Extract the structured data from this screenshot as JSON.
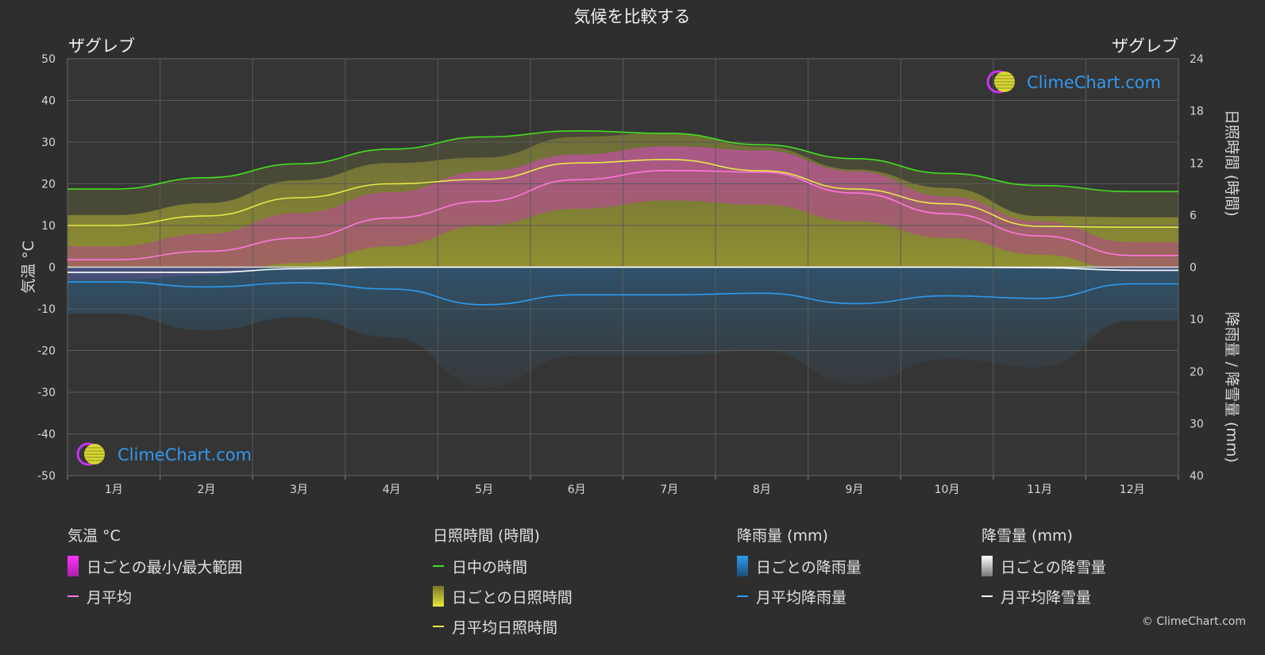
{
  "chart_data": {
    "type": "line",
    "title": "気候を比較する",
    "location_left": "ザグレブ",
    "location_right": "ザグレブ",
    "watermark": "ClimeChart.com",
    "categories": [
      "1月",
      "2月",
      "3月",
      "4月",
      "5月",
      "6月",
      "7月",
      "8月",
      "9月",
      "10月",
      "11月",
      "12月"
    ],
    "y_left": {
      "label": "気温 °C",
      "range": [
        -50,
        50
      ],
      "ticks": [
        50,
        40,
        30,
        20,
        10,
        0,
        -10,
        -20,
        -30,
        -40,
        -50
      ]
    },
    "y_right_top": {
      "label": "日照時間 (時間)",
      "range": [
        0,
        24
      ],
      "ticks": [
        24,
        18,
        12,
        6,
        0
      ]
    },
    "y_right_bottom": {
      "label": "降雨量 / 降雪量 (mm)",
      "range": [
        0,
        40
      ],
      "ticks": [
        0,
        10,
        20,
        30,
        40
      ]
    },
    "series": [
      {
        "name": "日中の時間",
        "axis": "sunshine_hours",
        "color": "#44dd22",
        "values": [
          9.0,
          10.3,
          11.9,
          13.6,
          15.0,
          15.7,
          15.4,
          14.1,
          12.5,
          10.8,
          9.4,
          8.7
        ]
      },
      {
        "name": "月平均日照時間",
        "axis": "sunshine_hours",
        "color": "#e8e84a",
        "values": [
          4.8,
          5.9,
          8.0,
          9.6,
          10.1,
          12.0,
          12.4,
          11.1,
          9.0,
          7.3,
          4.7,
          4.6
        ]
      },
      {
        "name": "月平均",
        "axis": "temperature_c",
        "color": "#ff77dd",
        "values": [
          1.8,
          3.8,
          7.0,
          11.8,
          15.8,
          21.0,
          23.2,
          22.8,
          17.8,
          12.8,
          7.5,
          2.8
        ]
      },
      {
        "name": "月平均降雨量",
        "axis": "precipitation_mm",
        "color": "#2e9bf0",
        "values": [
          2.8,
          3.8,
          3.0,
          4.2,
          7.2,
          5.3,
          5.3,
          5.0,
          7.0,
          5.5,
          6.0,
          3.2
        ]
      },
      {
        "name": "月平均降雪量",
        "axis": "precipitation_mm",
        "color": "#ffffff",
        "values": [
          1.0,
          1.0,
          0.3,
          0.0,
          0.0,
          0.0,
          0.0,
          0.0,
          0.0,
          0.0,
          0.1,
          0.6
        ]
      }
    ],
    "daily_temperature_range_c": {
      "min": [
        -3,
        -2,
        1,
        5,
        10,
        14,
        16,
        15,
        11,
        7,
        3,
        -1
      ],
      "max": [
        5,
        8,
        13,
        18,
        23,
        27,
        29,
        28,
        23,
        17,
        11,
        6
      ]
    },
    "grid": true,
    "legend": {
      "groups": [
        {
          "title": "気温 °C",
          "items": [
            "日ごとの最小/最大範囲",
            "月平均"
          ]
        },
        {
          "title": "日照時間 (時間)",
          "items": [
            "日中の時間",
            "日ごとの日照時間",
            "月平均日照時間"
          ]
        },
        {
          "title": "降雨量 (mm)",
          "items": [
            "日ごとの降雨量",
            "月平均降雨量"
          ]
        },
        {
          "title": "降雪量 (mm)",
          "items": [
            "日ごとの降雪量",
            "月平均降雪量"
          ]
        }
      ]
    },
    "copyright": "© ClimeChart.com"
  }
}
